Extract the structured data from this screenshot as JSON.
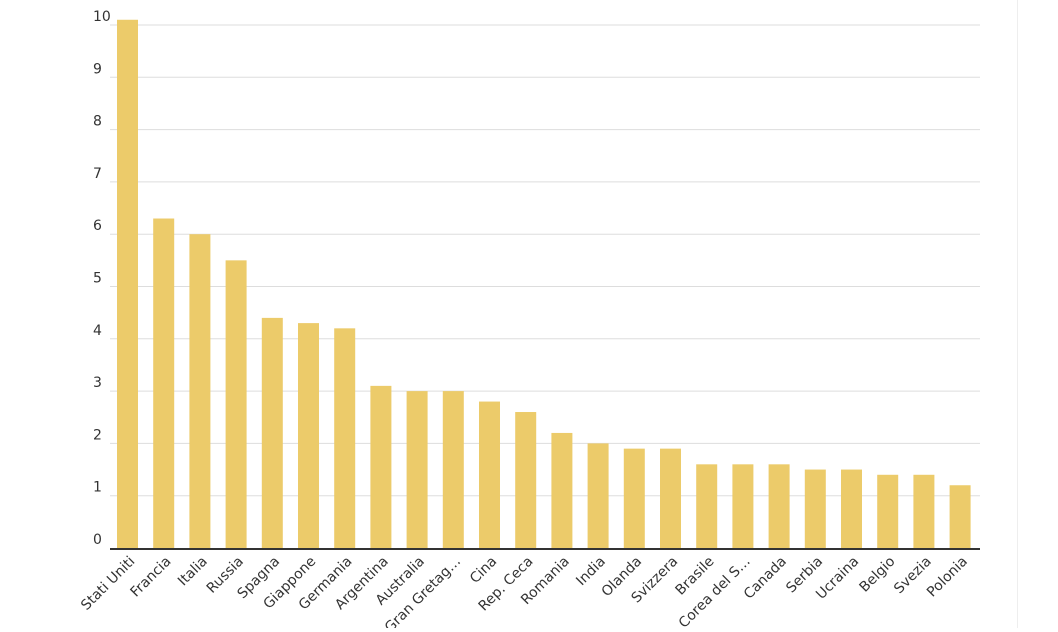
{
  "colors": {
    "bar": "#ECCB6A",
    "grid": "#dddddd",
    "axis": "#333333",
    "text": "#333333"
  },
  "chart_data": {
    "type": "bar",
    "categories": [
      "Stati Uniti",
      "Francia",
      "Italia",
      "Russia",
      "Spagna",
      "Giappone",
      "Germania",
      "Argentina",
      "Australia",
      "Gran Gretag…",
      "Cina",
      "Rep. Ceca",
      "Romania",
      "India",
      "Olanda",
      "Svizzera",
      "Brasile",
      "Corea del S…",
      "Canada",
      "Serbia",
      "Ucraina",
      "Belgio",
      "Svezia",
      "Polonia"
    ],
    "values": [
      10.1,
      6.3,
      6.0,
      5.5,
      4.4,
      4.3,
      4.2,
      3.1,
      3.0,
      3.0,
      2.8,
      2.6,
      2.2,
      2.0,
      1.9,
      1.9,
      1.6,
      1.6,
      1.6,
      1.5,
      1.5,
      1.4,
      1.4,
      1.2
    ],
    "y_ticks": [
      "0",
      "1",
      "2",
      "3",
      "4",
      "5",
      "6",
      "7",
      "8",
      "9",
      "10"
    ],
    "ylim": [
      0,
      10
    ],
    "grid": true,
    "legend": "none",
    "title": "",
    "xlabel": "",
    "ylabel": ""
  }
}
